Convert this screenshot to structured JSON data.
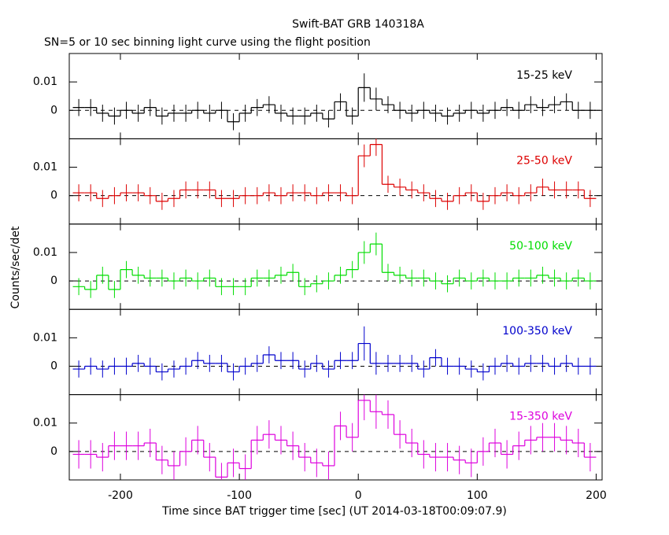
{
  "chart_data": {
    "type": "step",
    "title": "Swift-BAT GRB 140318A",
    "subtitle": "SN=5 or 10 sec binning light curve using the flight position",
    "xlabel": "Time since BAT trigger time [sec] (UT 2014-03-18T00:09:07.9)",
    "ylabel": "Counts/sec/det",
    "xlim": [
      -243,
      205
    ],
    "xticks": [
      -200,
      -100,
      0,
      100,
      200
    ],
    "ylim": [
      -0.01,
      0.02
    ],
    "yticks": [
      0,
      0.01
    ],
    "x": [
      -235,
      -225,
      -215,
      -205,
      -195,
      -185,
      -175,
      -165,
      -155,
      -145,
      -135,
      -125,
      -115,
      -105,
      -95,
      -85,
      -75,
      -65,
      -55,
      -45,
      -35,
      -25,
      -15,
      -5,
      5,
      15,
      25,
      35,
      45,
      55,
      65,
      75,
      85,
      95,
      105,
      115,
      125,
      135,
      145,
      155,
      165,
      175,
      185,
      195
    ],
    "series": [
      {
        "name": "15-25 keV",
        "color": "#000000",
        "values": [
          0.001,
          0.001,
          -0.001,
          -0.002,
          0,
          -0.001,
          0.001,
          -0.002,
          -0.001,
          -0.001,
          0,
          -0.001,
          0,
          -0.004,
          -0.001,
          0.001,
          0.002,
          -0.001,
          -0.002,
          -0.002,
          -0.001,
          -0.003,
          0.003,
          -0.002,
          0.008,
          0.004,
          0.002,
          0,
          -0.001,
          0,
          -0.001,
          -0.002,
          -0.001,
          0,
          -0.001,
          0,
          0.001,
          0,
          0.002,
          0.001,
          0.002,
          0.003,
          0,
          0
        ],
        "errors": [
          0.003,
          0.003,
          0.003,
          0.003,
          0.003,
          0.003,
          0.003,
          0.003,
          0.003,
          0.003,
          0.003,
          0.003,
          0.003,
          0.003,
          0.003,
          0.003,
          0.003,
          0.003,
          0.003,
          0.003,
          0.003,
          0.003,
          0.003,
          0.003,
          0.005,
          0.004,
          0.003,
          0.003,
          0.003,
          0.003,
          0.003,
          0.003,
          0.003,
          0.003,
          0.003,
          0.003,
          0.003,
          0.003,
          0.003,
          0.003,
          0.003,
          0.003,
          0.003,
          0.003
        ]
      },
      {
        "name": "25-50 keV",
        "color": "#dd0000",
        "values": [
          0.001,
          0.001,
          -0.001,
          0,
          0.001,
          0.001,
          0,
          -0.002,
          -0.001,
          0.002,
          0.002,
          0.002,
          -0.001,
          -0.001,
          0,
          0,
          0.001,
          0,
          0.001,
          0.001,
          0,
          0.001,
          0.001,
          0,
          0.014,
          0.018,
          0.004,
          0.003,
          0.002,
          0.001,
          -0.001,
          -0.002,
          0,
          0.001,
          -0.002,
          0,
          0.001,
          0,
          0.001,
          0.003,
          0.002,
          0.002,
          0.002,
          -0.001
        ],
        "errors": [
          0.003,
          0.003,
          0.003,
          0.003,
          0.003,
          0.003,
          0.003,
          0.003,
          0.003,
          0.003,
          0.003,
          0.003,
          0.003,
          0.003,
          0.003,
          0.003,
          0.003,
          0.003,
          0.003,
          0.003,
          0.003,
          0.003,
          0.003,
          0.003,
          0.004,
          0.004,
          0.003,
          0.003,
          0.003,
          0.003,
          0.003,
          0.003,
          0.003,
          0.003,
          0.003,
          0.003,
          0.003,
          0.003,
          0.003,
          0.003,
          0.003,
          0.003,
          0.003,
          0.003
        ]
      },
      {
        "name": "50-100 keV",
        "color": "#00dd00",
        "values": [
          -0.002,
          -0.003,
          0.002,
          -0.003,
          0.004,
          0.002,
          0.001,
          0.001,
          0,
          0.001,
          0,
          0.001,
          -0.002,
          -0.002,
          -0.002,
          0.001,
          0.001,
          0.002,
          0.003,
          -0.002,
          -0.001,
          0,
          0.002,
          0.004,
          0.01,
          0.013,
          0.003,
          0.002,
          0.001,
          0.001,
          0,
          -0.001,
          0.001,
          0,
          0.001,
          0,
          0,
          0.001,
          0.001,
          0.002,
          0.001,
          0,
          0.001,
          0
        ],
        "errors": [
          0.003,
          0.003,
          0.003,
          0.003,
          0.003,
          0.003,
          0.003,
          0.003,
          0.003,
          0.003,
          0.003,
          0.003,
          0.003,
          0.003,
          0.003,
          0.003,
          0.003,
          0.003,
          0.003,
          0.003,
          0.003,
          0.003,
          0.003,
          0.003,
          0.004,
          0.004,
          0.003,
          0.003,
          0.003,
          0.003,
          0.003,
          0.003,
          0.003,
          0.003,
          0.003,
          0.003,
          0.003,
          0.003,
          0.003,
          0.003,
          0.003,
          0.003,
          0.003,
          0.003
        ]
      },
      {
        "name": "100-350 keV",
        "color": "#0000cc",
        "values": [
          -0.001,
          0,
          -0.001,
          0,
          0,
          0.001,
          0,
          -0.002,
          -0.001,
          0,
          0.002,
          0.001,
          0.001,
          -0.002,
          0,
          0.001,
          0.004,
          0.002,
          0.002,
          -0.001,
          0.001,
          -0.001,
          0.002,
          0.002,
          0.008,
          0.001,
          0.001,
          0.001,
          0.001,
          -0.001,
          0.003,
          0,
          0,
          -0.001,
          -0.002,
          0,
          0.001,
          0,
          0.001,
          0.001,
          0,
          0.001,
          0,
          0
        ],
        "errors": [
          0.003,
          0.003,
          0.003,
          0.003,
          0.003,
          0.003,
          0.003,
          0.003,
          0.003,
          0.003,
          0.003,
          0.003,
          0.003,
          0.003,
          0.003,
          0.003,
          0.003,
          0.003,
          0.003,
          0.003,
          0.003,
          0.003,
          0.003,
          0.003,
          0.006,
          0.004,
          0.003,
          0.003,
          0.003,
          0.003,
          0.003,
          0.003,
          0.003,
          0.003,
          0.003,
          0.003,
          0.003,
          0.003,
          0.003,
          0.003,
          0.003,
          0.003,
          0.003,
          0.003
        ]
      },
      {
        "name": "15-350 keV",
        "color": "#dd00dd",
        "values": [
          -0.001,
          -0.001,
          -0.002,
          0.002,
          0.002,
          0.002,
          0.003,
          -0.003,
          -0.005,
          0,
          0.004,
          -0.002,
          -0.009,
          -0.004,
          -0.006,
          0.004,
          0.006,
          0.004,
          0.002,
          -0.002,
          -0.004,
          -0.005,
          0.009,
          0.005,
          0.018,
          0.014,
          0.013,
          0.006,
          0.003,
          -0.001,
          -0.002,
          -0.002,
          -0.003,
          -0.004,
          0,
          0.003,
          -0.001,
          0.002,
          0.004,
          0.005,
          0.005,
          0.004,
          0.003,
          -0.002
        ],
        "errors": [
          0.005,
          0.005,
          0.005,
          0.005,
          0.005,
          0.005,
          0.005,
          0.005,
          0.005,
          0.005,
          0.005,
          0.005,
          0.005,
          0.005,
          0.005,
          0.005,
          0.005,
          0.005,
          0.005,
          0.005,
          0.005,
          0.005,
          0.005,
          0.005,
          0.007,
          0.006,
          0.005,
          0.005,
          0.005,
          0.005,
          0.005,
          0.005,
          0.005,
          0.005,
          0.005,
          0.005,
          0.005,
          0.005,
          0.005,
          0.005,
          0.005,
          0.005,
          0.005,
          0.005
        ]
      }
    ]
  }
}
